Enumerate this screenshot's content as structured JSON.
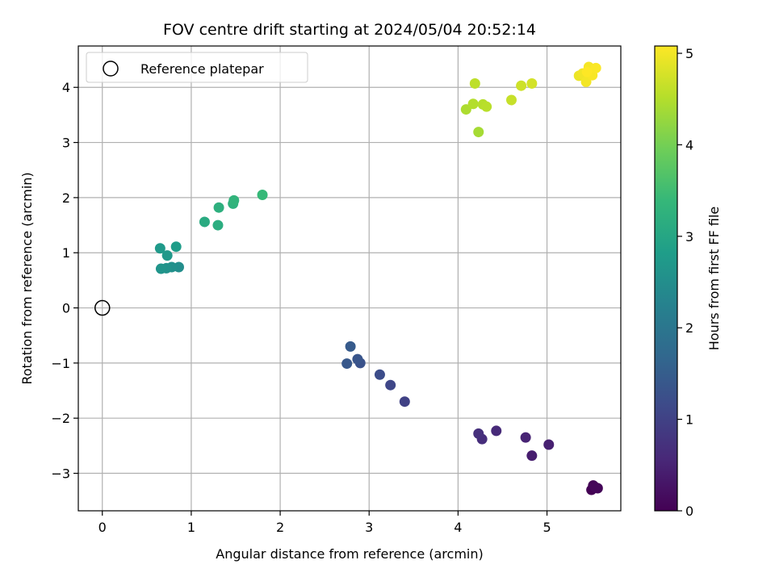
{
  "chart_data": {
    "type": "scatter",
    "title": "FOV centre drift starting at 2024/05/04 20:52:14",
    "xlabel": "Angular distance from reference (arcmin)",
    "ylabel": "Rotation from reference (arcmin)",
    "xlim": [
      -0.27,
      5.83
    ],
    "ylim": [
      -3.68,
      4.75
    ],
    "xticks": [
      0,
      1,
      2,
      3,
      4,
      5
    ],
    "yticks": [
      -3,
      -2,
      -1,
      0,
      1,
      2,
      3,
      4
    ],
    "xtick_labels": [
      "0",
      "1",
      "2",
      "3",
      "4",
      "5"
    ],
    "ytick_labels": [
      "−3",
      "−2",
      "−1",
      "0",
      "1",
      "2",
      "3",
      "4"
    ],
    "grid": true,
    "legend": {
      "placement": "upper-left",
      "entries": [
        "Reference platepar"
      ]
    },
    "reference_point": {
      "x": 0,
      "y": 0
    },
    "colorbar": {
      "label": "Hours from first FF file",
      "range": [
        0,
        5.08
      ],
      "ticks": [
        0,
        1,
        2,
        3,
        4,
        5
      ],
      "tick_labels": [
        "0",
        "1",
        "2",
        "3",
        "4",
        "5"
      ],
      "colormap": [
        "#440154",
        "#482878",
        "#3e4989",
        "#31688e",
        "#26828e",
        "#1f9e89",
        "#35b779",
        "#6ece58",
        "#b5de2b",
        "#fde725"
      ]
    },
    "points": [
      {
        "x": 5.5,
        "y": -3.3,
        "t": 0.0
      },
      {
        "x": 5.52,
        "y": -3.22,
        "t": 0.03
      },
      {
        "x": 5.57,
        "y": -3.27,
        "t": 0.06
      },
      {
        "x": 5.54,
        "y": -3.25,
        "t": 0.08
      },
      {
        "x": 4.83,
        "y": -2.68,
        "t": 0.4
      },
      {
        "x": 5.02,
        "y": -2.48,
        "t": 0.45
      },
      {
        "x": 4.76,
        "y": -2.35,
        "t": 0.5
      },
      {
        "x": 4.43,
        "y": -2.23,
        "t": 0.6
      },
      {
        "x": 4.27,
        "y": -2.38,
        "t": 0.65
      },
      {
        "x": 4.23,
        "y": -2.28,
        "t": 0.7
      },
      {
        "x": 3.4,
        "y": -1.7,
        "t": 1.0
      },
      {
        "x": 3.24,
        "y": -1.4,
        "t": 1.1
      },
      {
        "x": 3.12,
        "y": -1.21,
        "t": 1.2
      },
      {
        "x": 2.9,
        "y": -1.0,
        "t": 1.3
      },
      {
        "x": 2.87,
        "y": -0.93,
        "t": 1.35
      },
      {
        "x": 2.75,
        "y": -1.01,
        "t": 1.4
      },
      {
        "x": 2.79,
        "y": -0.7,
        "t": 1.45
      },
      {
        "x": 0.86,
        "y": 0.74,
        "t": 2.5
      },
      {
        "x": 0.78,
        "y": 0.74,
        "t": 2.55
      },
      {
        "x": 0.72,
        "y": 0.72,
        "t": 2.6
      },
      {
        "x": 0.66,
        "y": 0.71,
        "t": 2.65
      },
      {
        "x": 0.73,
        "y": 0.95,
        "t": 2.7
      },
      {
        "x": 0.65,
        "y": 1.08,
        "t": 2.75
      },
      {
        "x": 0.83,
        "y": 1.11,
        "t": 2.8
      },
      {
        "x": 1.15,
        "y": 1.56,
        "t": 3.1
      },
      {
        "x": 1.3,
        "y": 1.5,
        "t": 3.15
      },
      {
        "x": 1.31,
        "y": 1.82,
        "t": 3.2
      },
      {
        "x": 1.47,
        "y": 1.89,
        "t": 3.25
      },
      {
        "x": 1.48,
        "y": 1.95,
        "t": 3.3
      },
      {
        "x": 1.8,
        "y": 2.05,
        "t": 3.4
      },
      {
        "x": 4.23,
        "y": 3.19,
        "t": 4.4
      },
      {
        "x": 4.09,
        "y": 3.6,
        "t": 4.45
      },
      {
        "x": 4.17,
        "y": 3.7,
        "t": 4.5
      },
      {
        "x": 4.28,
        "y": 3.69,
        "t": 4.52
      },
      {
        "x": 4.32,
        "y": 3.65,
        "t": 4.55
      },
      {
        "x": 4.19,
        "y": 4.07,
        "t": 4.58
      },
      {
        "x": 4.6,
        "y": 3.77,
        "t": 4.65
      },
      {
        "x": 4.71,
        "y": 4.03,
        "t": 4.7
      },
      {
        "x": 4.83,
        "y": 4.07,
        "t": 4.75
      },
      {
        "x": 5.36,
        "y": 4.21,
        "t": 4.95
      },
      {
        "x": 5.4,
        "y": 4.25,
        "t": 4.98
      },
      {
        "x": 5.44,
        "y": 4.1,
        "t": 5.0
      },
      {
        "x": 5.47,
        "y": 4.37,
        "t": 5.02
      },
      {
        "x": 5.51,
        "y": 4.22,
        "t": 5.04
      },
      {
        "x": 5.55,
        "y": 4.35,
        "t": 5.06
      },
      {
        "x": 5.45,
        "y": 4.28,
        "t": 5.08
      }
    ]
  }
}
